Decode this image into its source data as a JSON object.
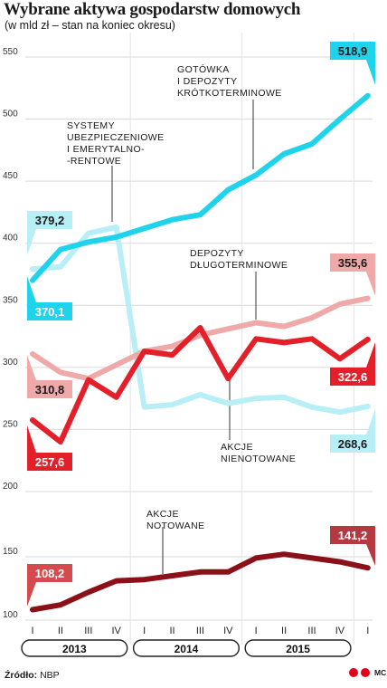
{
  "header": {
    "title": "Wybrane aktywa gospodarstw domowych",
    "subtitle": "(w mld zł – stan na koniec okresu)"
  },
  "footer": {
    "source_label": "Źródło:",
    "source_value": "NBP",
    "logo_text": "MC"
  },
  "chart_data": [
    {
      "type": "line",
      "categories": [
        "I",
        "II",
        "III",
        "IV",
        "I",
        "II",
        "III",
        "IV",
        "I",
        "II",
        "III",
        "IV",
        "I"
      ],
      "year_groups": [
        {
          "label": "2013",
          "quarters": [
            "I",
            "II",
            "III",
            "IV"
          ]
        },
        {
          "label": "2014",
          "quarters": [
            "I",
            "II",
            "III",
            "IV"
          ]
        },
        {
          "label": "2015",
          "quarters": [
            "I",
            "II",
            "III",
            "IV"
          ]
        }
      ],
      "ylim": [
        200,
        560
      ],
      "yticks": [
        200,
        250,
        300,
        350,
        400,
        450,
        500,
        550
      ],
      "grid": true,
      "series": [
        {
          "name": "GOTÓWKA I DEPOZYTY KRÓTKOTERMINOWE",
          "annotation_lines": [
            "GOTÓWKA",
            "I DEPOZYTY",
            "KRÓTKOTERMINOWE"
          ],
          "color": "#1fd3ea",
          "values": [
            370.1,
            395,
            401,
            405,
            412,
            419,
            423,
            443,
            455,
            472,
            480,
            500,
            518.9
          ],
          "start_label": "370,1",
          "end_label": "518,9"
        },
        {
          "name": "SYSTEMY UBEZPIECZENIOWE I EMERYTALNO-RENTOWE",
          "annotation_lines": [
            "SYSTEMY",
            "UBEZPIECZENIOWE",
            "I EMERYTALNO-",
            "-RENTOWE"
          ],
          "color": "#b8eef6",
          "values": [
            379.2,
            381,
            408,
            413,
            268,
            270,
            278,
            271,
            275,
            276,
            268,
            264,
            268.6
          ],
          "start_label": "379,2",
          "end_label": "268,6"
        },
        {
          "name": "DEPOZYTY DŁUGOTERMINOWE",
          "annotation_lines": [
            "DEPOZYTY",
            "DŁUGOTERMINOWE"
          ],
          "color": "#f0a9a9",
          "values": [
            310.8,
            296,
            291,
            302,
            313,
            317,
            326,
            331,
            336,
            333,
            340,
            351,
            355.6
          ],
          "start_label": "310,8",
          "end_label": "355,6"
        },
        {
          "name": "AKCJE NIENOTOWANE",
          "annotation_lines": [
            "AKCJE",
            "NIENOTOWANE"
          ],
          "color": "#e3202a",
          "values": [
            257.6,
            240,
            290,
            276,
            313,
            310,
            332,
            291,
            323,
            320,
            323,
            307,
            322.6
          ],
          "start_label": "257,6",
          "end_label": "322,6"
        }
      ]
    },
    {
      "type": "line",
      "categories": [
        "I",
        "II",
        "III",
        "IV",
        "I",
        "II",
        "III",
        "IV",
        "I",
        "II",
        "III",
        "IV",
        "I"
      ],
      "ylim": [
        100,
        165
      ],
      "yticks": [
        100,
        150
      ],
      "grid": true,
      "series": [
        {
          "name": "AKCJE NOTOWANE",
          "annotation_lines": [
            "AKCJE",
            "NOTOWANE"
          ],
          "color": "#8b1018",
          "values": [
            108.2,
            112,
            122,
            131,
            132,
            135,
            138,
            138,
            149,
            152,
            149,
            146,
            141.2
          ],
          "start_label": "108,2",
          "end_label": "141,2"
        }
      ]
    }
  ]
}
